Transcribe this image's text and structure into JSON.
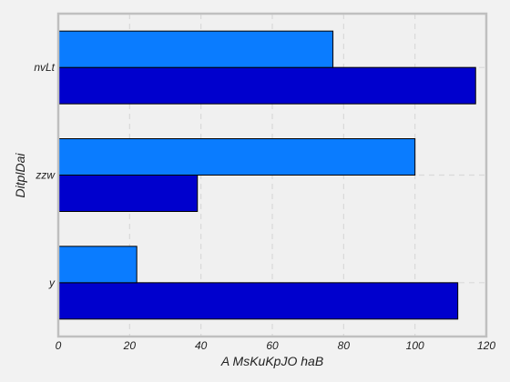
{
  "chart_data": {
    "type": "bar",
    "orientation": "horizontal",
    "categories": [
      "y",
      "zzw",
      "nvLt"
    ],
    "series": [
      {
        "values": [
          112,
          39,
          117
        ],
        "color": "#0000cd"
      },
      {
        "values": [
          22,
          100,
          77
        ],
        "color": "#0a7cff"
      }
    ],
    "xlabel": "A MsKuKpJO haB",
    "ylabel": "DitplDai",
    "xlim": [
      0,
      120
    ],
    "xticks": [
      0,
      20,
      40,
      60,
      80,
      100,
      120
    ],
    "grid": true,
    "legend": "none",
    "background": "#f0f0f0",
    "frame_color": "#bfbfbf"
  }
}
